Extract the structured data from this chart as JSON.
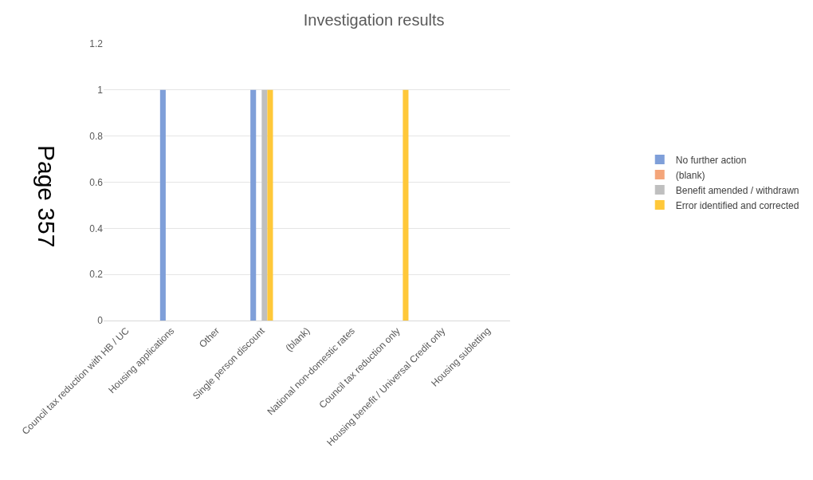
{
  "chart_data": {
    "type": "bar",
    "title": "Investigation results",
    "categories": [
      "Council tax reduction with HB / UC",
      "Housing applications",
      "Other",
      "Single person discount",
      "(blank)",
      "National non-domestic rates",
      "Council tax reduction only",
      "Housing benefit / Universal Credit only",
      "Housing subletting"
    ],
    "series": [
      {
        "name": "No further action",
        "color": "#7f9fd9",
        "values": [
          0,
          1,
          0,
          1,
          0,
          0,
          0,
          0,
          0
        ]
      },
      {
        "name": "(blank)",
        "color": "#f4a57a",
        "values": [
          0,
          0,
          0,
          0,
          0,
          0,
          0,
          0,
          0
        ]
      },
      {
        "name": "Benefit amended / withdrawn",
        "color": "#bfbfbf",
        "values": [
          0,
          0,
          0,
          1,
          0,
          0,
          0,
          0,
          0
        ]
      },
      {
        "name": "Error identified and corrected",
        "color": "#ffc839",
        "values": [
          0,
          0,
          0,
          1,
          0,
          0,
          1,
          0,
          0
        ]
      }
    ],
    "ylim": [
      0,
      1.2
    ],
    "yticks": [
      0,
      0.2,
      0.4,
      0.6,
      0.8,
      1,
      1.2
    ],
    "grid": "y",
    "legend": "right",
    "annotations": [
      "Page 357"
    ]
  }
}
